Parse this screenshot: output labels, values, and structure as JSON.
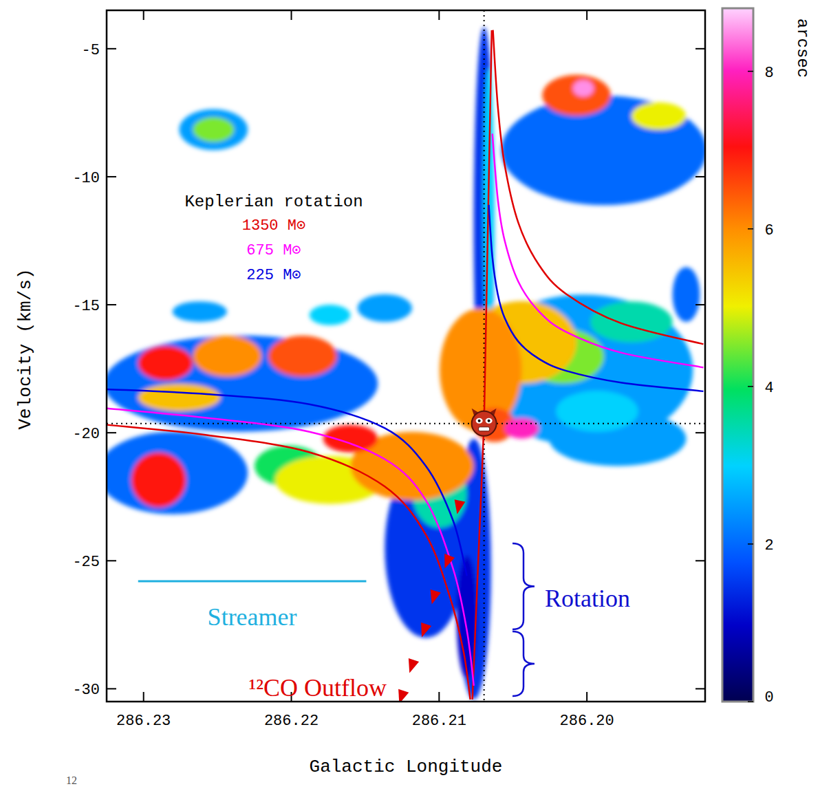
{
  "chart_data": {
    "type": "heatmap",
    "xlabel": "Galactic Longitude",
    "ylabel": "Velocity (km/s)",
    "xlim": [
      286.2325,
      286.192
    ],
    "ylim": [
      -3.5,
      -30.5
    ],
    "xticks": [
      286.23,
      286.22,
      286.21,
      {
        "value": 286.2,
        "label": "286.20"
      }
    ],
    "yticks": [
      -5,
      -10,
      -15,
      -20,
      -25,
      -30
    ],
    "colorbar": {
      "range": [
        0,
        8.8
      ],
      "ticks": [
        0,
        2,
        4,
        6,
        8
      ],
      "label": "arcsec"
    },
    "source": {
      "l": 286.20696,
      "v": -19.64
    },
    "legend_title": "Keplerian rotation",
    "series": [
      {
        "name": "1350 M⊙",
        "color": "#e00000",
        "upper": {
          "l": [
            286.20636,
            286.20603,
            286.20557,
            286.20464,
            286.20325,
            286.2014,
            286.19769,
            286.19212
          ],
          "v": [
            -4.27,
            -7.24,
            -9.52,
            -11.8,
            -13.44,
            -14.58,
            -15.72,
            -16.54
          ]
        },
        "lower": {
          "l": [
            286.23246,
            286.22573,
            286.21878,
            286.21368,
            286.2109,
            286.20928,
            286.20835,
            286.20789
          ],
          "v": [
            -19.69,
            -20.09,
            -20.76,
            -22.1,
            -23.98,
            -26.39,
            -28.54,
            -30.42
          ]
        },
        "spine": {
          "l": [
            286.20644,
            286.20696,
            286.20775
          ],
          "v": [
            -4.28,
            -19.64,
            -30.42
          ]
        }
      },
      {
        "name": "675 M⊙",
        "color": "#ff00ff",
        "upper": {
          "l": [
            286.2064,
            286.20603,
            286.20557,
            286.20464,
            286.20325,
            286.2014,
            286.19769,
            286.19212
          ],
          "v": [
            -8.32,
            -10.87,
            -12.48,
            -14.1,
            -15.26,
            -16.06,
            -16.87,
            -17.45
          ]
        },
        "lower": {
          "l": [
            286.23246,
            286.22573,
            286.21878,
            286.21368,
            286.2109,
            286.20905,
            286.20812,
            286.20765
          ],
          "v": [
            -19.05,
            -19.42,
            -19.96,
            -21.03,
            -22.64,
            -25.32,
            -27.73,
            -29.88
          ]
        }
      },
      {
        "name": "225 M⊙",
        "color": "#0000e0",
        "upper": {
          "l": [
            286.20664,
            286.2064,
            286.20603,
            286.20557,
            286.20464,
            286.20325,
            286.2014,
            286.19769,
            286.19212
          ],
          "v": [
            -11.1,
            -13.12,
            -14.59,
            -15.51,
            -16.44,
            -17.11,
            -17.58,
            -18.04,
            -18.38
          ]
        },
        "lower": {
          "l": [
            286.23246,
            286.22573,
            286.21878,
            286.21368,
            286.2109,
            286.20905,
            286.20812
          ],
          "v": [
            -18.3,
            -18.49,
            -18.89,
            -19.82,
            -21.3,
            -23.44,
            -25.59
          ]
        }
      }
    ],
    "streamer": {
      "label": "Streamer",
      "color": "#20b0e0",
      "l": [
        286.23037,
        286.21493
      ],
      "v": -25.8
    },
    "outflow": {
      "label": "¹²CO Outflow",
      "color": "#e00000",
      "l": [
        286.20867,
        286.20942,
        286.21034,
        286.21099,
        286.21183,
        286.21252
      ],
      "v": [
        -22.86,
        -25.0,
        -26.39,
        -27.68,
        -29.08,
        -30.28
      ]
    },
    "rotation": {
      "label": "Rotation",
      "color": "#1010d0"
    },
    "footnote": "12",
    "emission": [
      {
        "l": 286.22342,
        "v": -18.08,
        "dl": 0.00927,
        "dv": 1.88,
        "value": 2
      },
      {
        "l": 286.22805,
        "v": -21.57,
        "dl": 0.0051,
        "dv": 1.61,
        "value": 2
      },
      {
        "l": 286.20024,
        "v": -17.55,
        "dl": 0.00742,
        "dv": 2.95,
        "value": 2.5
      },
      {
        "l": 286.19885,
        "v": -8.97,
        "dl": 0.00695,
        "dv": 2.14,
        "value": 2
      },
      {
        "l": 286.19792,
        "v": -20.23,
        "dl": 0.00464,
        "dv": 1.07,
        "value": 2.5
      },
      {
        "l": 286.20696,
        "v": -11.92,
        "dl": 0.0007,
        "dv": 7.77,
        "value": 1.5
      },
      {
        "l": 286.2109,
        "v": -24.52,
        "dl": 0.00278,
        "dv": 3.49,
        "value": 1.5
      },
      {
        "l": 286.20765,
        "v": -25.32,
        "dl": 0.00116,
        "dv": 5.09,
        "value": 1.5
      },
      {
        "l": 286.20812,
        "v": -27.2,
        "dl": 0.0007,
        "dv": 2.41,
        "value": 1
      },
      {
        "l": 286.22527,
        "v": -8.16,
        "dl": 0.00232,
        "dv": 0.8,
        "value": 2.5
      },
      {
        "l": 286.19328,
        "v": -14.6,
        "dl": 0.00093,
        "dv": 1.07,
        "value": 2
      },
      {
        "l": 286.2262,
        "v": -15.27,
        "dl": 0.00185,
        "dv": 0.4,
        "value": 2.5
      },
      {
        "l": 286.21739,
        "v": -15.4,
        "dl": 0.00139,
        "dv": 0.4,
        "value": 3
      },
      {
        "l": 286.21368,
        "v": -15.13,
        "dl": 0.00185,
        "dv": 0.54,
        "value": 2.5
      },
      {
        "l": 286.20997,
        "v": -22.37,
        "dl": 0.00185,
        "dv": 1.34,
        "value": 3.5
      },
      {
        "l": 286.19699,
        "v": -15.67,
        "dl": 0.00278,
        "dv": 0.8,
        "value": 3.5
      },
      {
        "l": 286.19931,
        "v": -19.16,
        "dl": 0.00278,
        "dv": 0.8,
        "value": 3
      },
      {
        "l": 286.20664,
        "v": -11.11,
        "dl": 0.00037,
        "dv": 5.36,
        "value": 3
      },
      {
        "l": 286.22527,
        "v": -8.16,
        "dl": 0.00139,
        "dv": 0.48,
        "value": 4.5
      },
      {
        "l": 286.19514,
        "v": -7.63,
        "dl": 0.00185,
        "dv": 0.54,
        "value": 5
      },
      {
        "l": 286.2007,
        "v": -6.82,
        "dl": 0.00232,
        "dv": 0.8,
        "value": 6.5
      },
      {
        "l": 286.20024,
        "v": -6.55,
        "dl": 0.0007,
        "dv": 0.32,
        "value": 8.5
      },
      {
        "l": 286.20163,
        "v": -17.01,
        "dl": 0.00278,
        "dv": 1.07,
        "value": 4.5
      },
      {
        "l": 286.20441,
        "v": -16.47,
        "dl": 0.00371,
        "dv": 1.61,
        "value": 5.5
      },
      {
        "l": 286.20719,
        "v": -17.55,
        "dl": 0.00278,
        "dv": 2.41,
        "value": 6
      },
      {
        "l": 286.22017,
        "v": -21.3,
        "dl": 0.00232,
        "dv": 0.8,
        "value": 4
      },
      {
        "l": 286.21739,
        "v": -21.84,
        "dl": 0.00371,
        "dv": 0.94,
        "value": 5
      },
      {
        "l": 286.21183,
        "v": -21.3,
        "dl": 0.00417,
        "dv": 1.34,
        "value": 6
      },
      {
        "l": 286.22759,
        "v": -18.62,
        "dl": 0.00278,
        "dv": 0.54,
        "value": 5.5
      },
      {
        "l": 286.22434,
        "v": -17.01,
        "dl": 0.00232,
        "dv": 0.8,
        "value": 6
      },
      {
        "l": 286.21924,
        "v": -17.01,
        "dl": 0.00232,
        "dv": 0.8,
        "value": 6.5
      },
      {
        "l": 286.22852,
        "v": -17.28,
        "dl": 0.00185,
        "dv": 0.67,
        "value": 7
      },
      {
        "l": 286.22898,
        "v": -21.84,
        "dl": 0.00185,
        "dv": 1.07,
        "value": 7
      },
      {
        "l": 286.216,
        "v": -20.23,
        "dl": 0.00185,
        "dv": 0.54,
        "value": 7
      },
      {
        "l": 286.20626,
        "v": -19.69,
        "dl": 0.00139,
        "dv": 0.67,
        "value": 6.5
      },
      {
        "l": 286.20441,
        "v": -19.83,
        "dl": 0.00116,
        "dv": 0.4,
        "value": 8
      }
    ]
  }
}
